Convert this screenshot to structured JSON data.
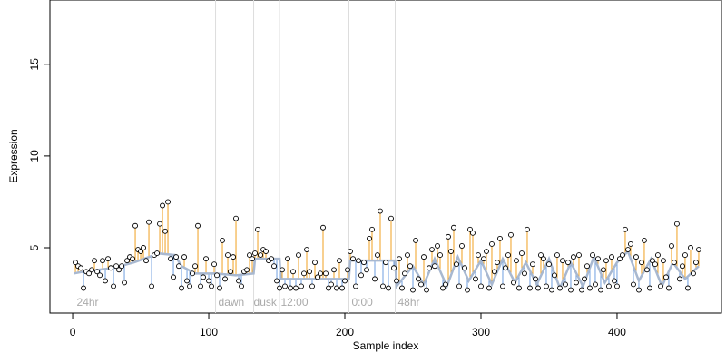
{
  "chart_data": {
    "type": "scatter",
    "x_label": "Sample index",
    "y_label": "Expression",
    "xlim": [
      -16.7,
      476.7
    ],
    "ylim": [
      1.44,
      18.5
    ],
    "xticks": [
      0,
      100,
      200,
      300,
      400
    ],
    "yticks": [
      5,
      10,
      15
    ],
    "point_color": "#000000",
    "above_color": "#f0a020",
    "below_color": "#6f9fe0",
    "fit_color": "#a8b8d0",
    "vlines": [
      105,
      133,
      152,
      203,
      237
    ],
    "vline_color": "#dddddd",
    "annotations": [
      {
        "label": "24hr",
        "x": 3,
        "y": 2.0
      },
      {
        "label": "dawn",
        "x": 107,
        "y": 2.0
      },
      {
        "label": "dusk",
        "x": 133,
        "y": 2.0
      },
      {
        "label": "12:00",
        "x": 153,
        "y": 2.0
      },
      {
        "label": "0:00",
        "x": 205,
        "y": 2.0
      },
      {
        "label": "48hr",
        "x": 239,
        "y": 2.0
      }
    ],
    "fit": {
      "x": [
        1,
        8,
        30,
        45,
        60,
        62,
        75,
        80,
        90,
        105,
        120,
        133,
        134,
        152,
        153,
        203,
        204,
        237,
        238,
        250,
        258,
        266,
        275,
        283,
        291,
        300,
        308,
        316,
        325,
        333,
        341,
        350,
        358,
        366,
        375,
        383,
        391,
        400,
        408,
        416,
        425,
        433,
        441,
        450,
        460
      ],
      "y": [
        3.6,
        3.7,
        3.9,
        4.2,
        4.6,
        4.7,
        4.6,
        4.0,
        3.6,
        3.6,
        3.5,
        3.6,
        4.4,
        4.4,
        3.3,
        3.3,
        4.3,
        4.3,
        2.9,
        4.0,
        3.0,
        4.4,
        2.9,
        4.5,
        3.2,
        4.3,
        3.0,
        4.4,
        3.1,
        4.2,
        3.0,
        4.4,
        2.8,
        4.2,
        2.9,
        4.5,
        3.1,
        4.2,
        4.8,
        3.2,
        4.4,
        2.9,
        4.2,
        3.3,
        4.0
      ]
    },
    "x": [
      2,
      4,
      6,
      8,
      10,
      12,
      14,
      16,
      18,
      20,
      22,
      24,
      26,
      28,
      30,
      32,
      34,
      36,
      38,
      40,
      42,
      44,
      46,
      48,
      50,
      52,
      54,
      56,
      58,
      60,
      62,
      64,
      66,
      68,
      70,
      72,
      74,
      76,
      78,
      80,
      82,
      84,
      86,
      88,
      90,
      92,
      94,
      96,
      98,
      100,
      102,
      104,
      106,
      108,
      110,
      112,
      114,
      116,
      118,
      120,
      122,
      124,
      126,
      128,
      130,
      132,
      134,
      136,
      138,
      140,
      142,
      144,
      146,
      148,
      150,
      152,
      154,
      156,
      158,
      160,
      162,
      164,
      166,
      168,
      170,
      172,
      174,
      176,
      178,
      180,
      182,
      184,
      186,
      188,
      190,
      192,
      194,
      196,
      198,
      200,
      202,
      204,
      206,
      208,
      210,
      212,
      214,
      216,
      218,
      220,
      222,
      224,
      226,
      228,
      230,
      232,
      234,
      236,
      238,
      240,
      242,
      244,
      246,
      248,
      250,
      252,
      254,
      256,
      258,
      260,
      262,
      264,
      266,
      268,
      270,
      272,
      274,
      276,
      278,
      280,
      282,
      284,
      286,
      288,
      290,
      292,
      294,
      296,
      298,
      300,
      302,
      304,
      306,
      308,
      310,
      312,
      314,
      316,
      318,
      320,
      322,
      324,
      326,
      328,
      330,
      332,
      334,
      336,
      338,
      340,
      342,
      344,
      346,
      348,
      350,
      352,
      354,
      356,
      358,
      360,
      362,
      364,
      366,
      368,
      370,
      372,
      374,
      376,
      378,
      380,
      382,
      384,
      386,
      388,
      390,
      392,
      394,
      396,
      398,
      400,
      402,
      404,
      406,
      408,
      410,
      412,
      414,
      416,
      418,
      420,
      422,
      424,
      426,
      428,
      430,
      432,
      434,
      436,
      438,
      440,
      442,
      444,
      446,
      448,
      450,
      452,
      454,
      456,
      458,
      460
    ],
    "values": [
      4.2,
      4.0,
      3.9,
      2.8,
      3.7,
      3.6,
      3.8,
      4.3,
      3.7,
      3.5,
      4.3,
      3.2,
      4.4,
      3.9,
      2.9,
      4.0,
      3.8,
      4.0,
      3.1,
      4.3,
      4.5,
      4.4,
      6.2,
      4.9,
      4.8,
      5.0,
      4.3,
      6.4,
      2.9,
      4.6,
      4.7,
      6.3,
      7.3,
      5.9,
      7.5,
      4.4,
      3.4,
      4.5,
      4.0,
      2.8,
      4.5,
      3.2,
      2.9,
      3.6,
      4.0,
      6.2,
      2.9,
      3.4,
      4.4,
      3.2,
      2.9,
      4.1,
      3.5,
      2.8,
      5.4,
      3.3,
      4.6,
      3.7,
      4.5,
      6.6,
      3.2,
      2.9,
      3.7,
      3.8,
      4.6,
      4.4,
      4.7,
      6.0,
      4.6,
      4.9,
      4.8,
      4.3,
      4.4,
      4.0,
      3.2,
      2.8,
      3.8,
      2.9,
      4.4,
      2.8,
      3.7,
      2.8,
      4.6,
      2.9,
      3.6,
      4.9,
      3.7,
      2.9,
      4.2,
      3.4,
      3.6,
      6.1,
      3.6,
      2.8,
      3.0,
      3.8,
      2.8,
      4.3,
      2.8,
      3.2,
      3.8,
      4.8,
      4.4,
      2.9,
      4.3,
      3.5,
      4.2,
      3.8,
      5.5,
      6.0,
      3.3,
      4.6,
      7.0,
      2.9,
      4.2,
      2.8,
      6.6,
      3.9,
      3.2,
      4.4,
      2.8,
      3.6,
      4.6,
      4.0,
      2.7,
      5.4,
      3.3,
      3.0,
      4.5,
      2.7,
      3.9,
      4.9,
      4.0,
      5.1,
      4.6,
      2.8,
      3.0,
      5.6,
      4.8,
      6.1,
      4.1,
      2.9,
      5.1,
      3.9,
      2.7,
      6.0,
      5.8,
      3.3,
      4.6,
      2.9,
      4.4,
      4.8,
      2.8,
      5.2,
      3.7,
      4.2,
      5.5,
      2.9,
      3.9,
      4.6,
      5.7,
      3.1,
      4.3,
      2.8,
      4.7,
      3.6,
      6.0,
      2.8,
      4.1,
      3.3,
      2.8,
      4.6,
      4.4,
      2.9,
      4.1,
      2.7,
      3.5,
      4.6,
      2.8,
      4.3,
      3.0,
      4.2,
      2.7,
      4.5,
      3.1,
      4.6,
      2.7,
      3.3,
      4.0,
      2.8,
      4.6,
      3.0,
      4.4,
      2.7,
      3.8,
      4.3,
      2.9,
      4.5,
      3.2,
      2.9,
      4.4,
      4.6,
      6.0,
      4.9,
      5.2,
      3.0,
      4.5,
      2.7,
      4.2,
      5.4,
      3.8,
      2.8,
      4.3,
      4.1,
      4.6,
      2.9,
      4.3,
      3.4,
      2.8,
      5.1,
      4.2,
      6.3,
      3.3,
      4.0,
      4.6,
      2.8,
      5.0,
      3.6,
      4.2,
      4.9
    ]
  }
}
